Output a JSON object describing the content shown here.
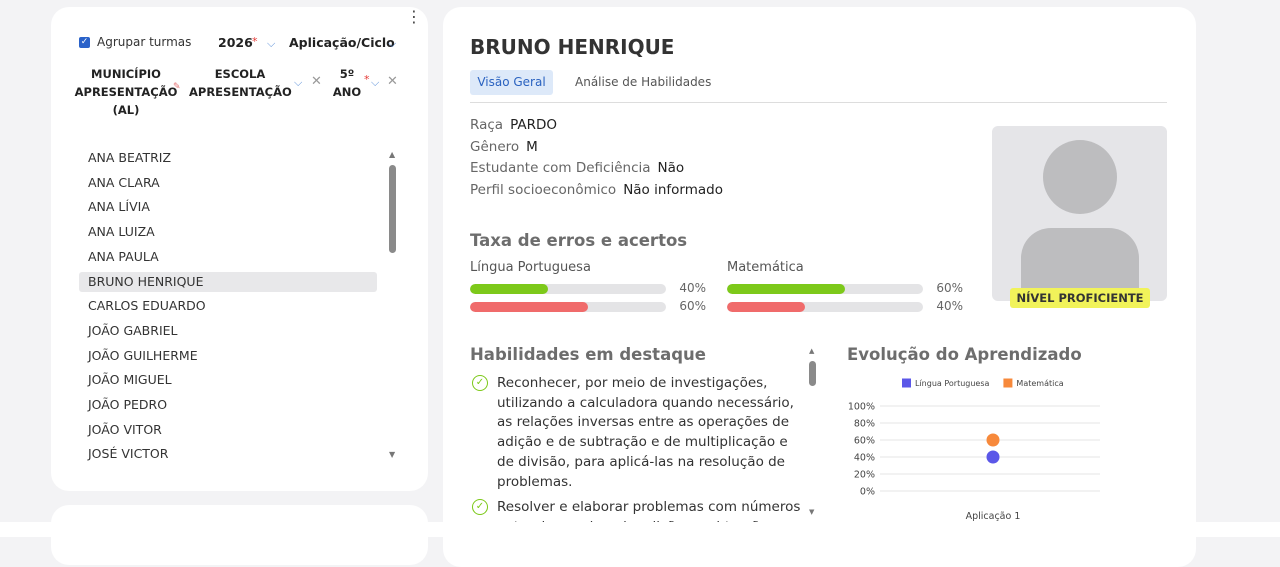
{
  "filters": {
    "group_label": "Agrupar turmas",
    "year": "2026",
    "year_required": "*",
    "cycle": "Aplicação/Ciclo",
    "municipio": "MUNICÍPIO APRESENTAÇÃO (AL)",
    "escola": "ESCOLA APRESENTAÇÃO",
    "ano": "5º ANO",
    "ano_required": "*"
  },
  "students": [
    "ANA BEATRIZ",
    "ANA CLARA",
    "ANA LÍVIA",
    "ANA LUIZA",
    "ANA PAULA",
    "BRUNO HENRIQUE",
    "CARLOS EDUARDO",
    "JOÃO GABRIEL",
    "JOÃO GUILHERME",
    "JOÃO MIGUEL",
    "JOÃO PEDRO",
    "JOÃO VITOR",
    "JOSÉ VICTOR"
  ],
  "profile": {
    "name": "BRUNO HENRIQUE",
    "tabs": [
      "Visão Geral",
      "Análise de Habilidades"
    ],
    "fields": [
      {
        "label": "Raça",
        "value": "PARDO"
      },
      {
        "label": "Gênero",
        "value": "M"
      },
      {
        "label": "Estudante com Deficiência",
        "value": "Não"
      },
      {
        "label": "Perfil socioeconômico",
        "value": "Não informado"
      }
    ],
    "badge": "NÍVEL PROFICIENTE"
  },
  "rates": {
    "title": "Taxa de erros e acertos",
    "colors": [
      "#7dc91a",
      "#f06b6b"
    ],
    "subjects": [
      {
        "name": "Língua Portuguesa",
        "values": [
          40,
          60
        ],
        "value_labels": [
          "40%",
          "60%"
        ]
      },
      {
        "name": "Matemática",
        "values": [
          60,
          40
        ],
        "value_labels": [
          "60%",
          "40%"
        ]
      }
    ]
  },
  "skills": {
    "title": "Habilidades em destaque",
    "items": [
      "Reconhecer, por meio de investigações, utilizando a calculadora quando necessário, as relações inversas entre as operações de adição e de subtração e de multiplicação e de divisão, para aplicá-las na resolução de problemas.",
      "Resolver e elaborar problemas com números naturais envolvendo adição e subtração,"
    ]
  },
  "chart_data": {
    "type": "scatter",
    "title": "Evolução do Aprendizado",
    "categories": [
      "Aplicação 1"
    ],
    "series": [
      {
        "name": "Língua Portuguesa",
        "color": "#5b57e8",
        "values": [
          40
        ]
      },
      {
        "name": "Matemática",
        "color": "#f7893b",
        "values": [
          60
        ]
      }
    ],
    "ylim": [
      0,
      100
    ],
    "yticks": [
      {
        "value": 0,
        "label": "0%"
      },
      {
        "value": 20,
        "label": "20%"
      },
      {
        "value": 40,
        "label": "40%"
      },
      {
        "value": 60,
        "label": "60%"
      },
      {
        "value": 80,
        "label": "80%"
      },
      {
        "value": 100,
        "label": "100%"
      }
    ],
    "grid": true
  }
}
